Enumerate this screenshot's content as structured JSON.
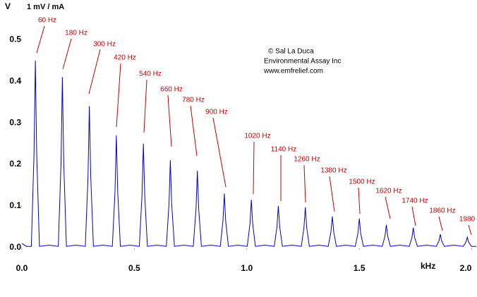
{
  "chart_data": {
    "type": "line",
    "y_label": "V",
    "y_unit": "1 mV / mA",
    "x_label": "kHz",
    "color": "#0000cc",
    "x": [
      0,
      0.02,
      0.042,
      0.054,
      0.06,
      0.066,
      0.078,
      0.12,
      0.162,
      0.174,
      0.18,
      0.186,
      0.198,
      0.24,
      0.282,
      0.294,
      0.3,
      0.306,
      0.318,
      0.36,
      0.402,
      0.414,
      0.42,
      0.426,
      0.438,
      0.48,
      0.522,
      0.534,
      0.54,
      0.546,
      0.558,
      0.6,
      0.642,
      0.654,
      0.66,
      0.666,
      0.678,
      0.72,
      0.762,
      0.774,
      0.78,
      0.786,
      0.798,
      0.84,
      0.882,
      0.894,
      0.9,
      0.906,
      0.918,
      0.96,
      1.002,
      1.014,
      1.02,
      1.026,
      1.038,
      1.08,
      1.122,
      1.134,
      1.14,
      1.146,
      1.158,
      1.2,
      1.242,
      1.254,
      1.26,
      1.266,
      1.278,
      1.32,
      1.362,
      1.374,
      1.38,
      1.386,
      1.398,
      1.44,
      1.482,
      1.494,
      1.5,
      1.506,
      1.518,
      1.56,
      1.602,
      1.614,
      1.62,
      1.626,
      1.638,
      1.68,
      1.722,
      1.734,
      1.74,
      1.746,
      1.758,
      1.8,
      1.842,
      1.854,
      1.86,
      1.866,
      1.878,
      1.92,
      1.962,
      1.974,
      1.98,
      1.986,
      1.998,
      2.02
    ],
    "values": [
      0.01,
      0.003,
      0.003,
      0.225,
      0.45,
      0.225,
      0.003,
      0.006,
      0.003,
      0.205,
      0.41,
      0.205,
      0.003,
      0.006,
      0.003,
      0.17,
      0.34,
      0.17,
      0.003,
      0.006,
      0.003,
      0.135,
      0.27,
      0.135,
      0.003,
      0.006,
      0.003,
      0.125,
      0.25,
      0.125,
      0.003,
      0.006,
      0.003,
      0.105,
      0.21,
      0.105,
      0.003,
      0.006,
      0.003,
      0.093,
      0.185,
      0.093,
      0.003,
      0.006,
      0.003,
      0.065,
      0.13,
      0.065,
      0.003,
      0.006,
      0.003,
      0.058,
      0.115,
      0.058,
      0.003,
      0.006,
      0.003,
      0.05,
      0.1,
      0.05,
      0.003,
      0.006,
      0.003,
      0.049,
      0.097,
      0.049,
      0.003,
      0.006,
      0.003,
      0.038,
      0.075,
      0.038,
      0.003,
      0.006,
      0.003,
      0.035,
      0.07,
      0.035,
      0.003,
      0.006,
      0.003,
      0.028,
      0.055,
      0.028,
      0.003,
      0.006,
      0.003,
      0.024,
      0.048,
      0.024,
      0.003,
      0.006,
      0.003,
      0.016,
      0.032,
      0.016,
      0.003,
      0.006,
      0.003,
      0.013,
      0.025,
      0.013,
      0.003,
      0.003
    ],
    "xlim": [
      0,
      2.02
    ],
    "ylim": [
      0,
      0.58
    ],
    "xticks": [
      {
        "value": 0,
        "label": "0.0"
      },
      0.5,
      {
        "value": 1,
        "label": "1.0"
      },
      1.5,
      {
        "value": 2,
        "label": "2.0"
      }
    ],
    "yticks": [
      {
        "value": 0,
        "label": "0.0"
      },
      0.1,
      0.2,
      0.3,
      0.4,
      0.5
    ],
    "annotations": [
      "60 Hz",
      "180 Hz",
      "300 Hz",
      "420 Hz",
      "540 Hz",
      "660 Hz",
      "780 Hz",
      "900 Hz",
      "1020 Hz",
      "1140 Hz",
      "1260 Hz",
      "1380 Hz",
      "1500 Hz",
      "1620 Hz",
      "1740 Hz",
      "1860 Hz",
      "1980"
    ],
    "annotation_color": "#cc0000",
    "credits": [
      "© Sal La Duca",
      "Environmental Assay Inc",
      "www.emfrelief.com"
    ]
  }
}
